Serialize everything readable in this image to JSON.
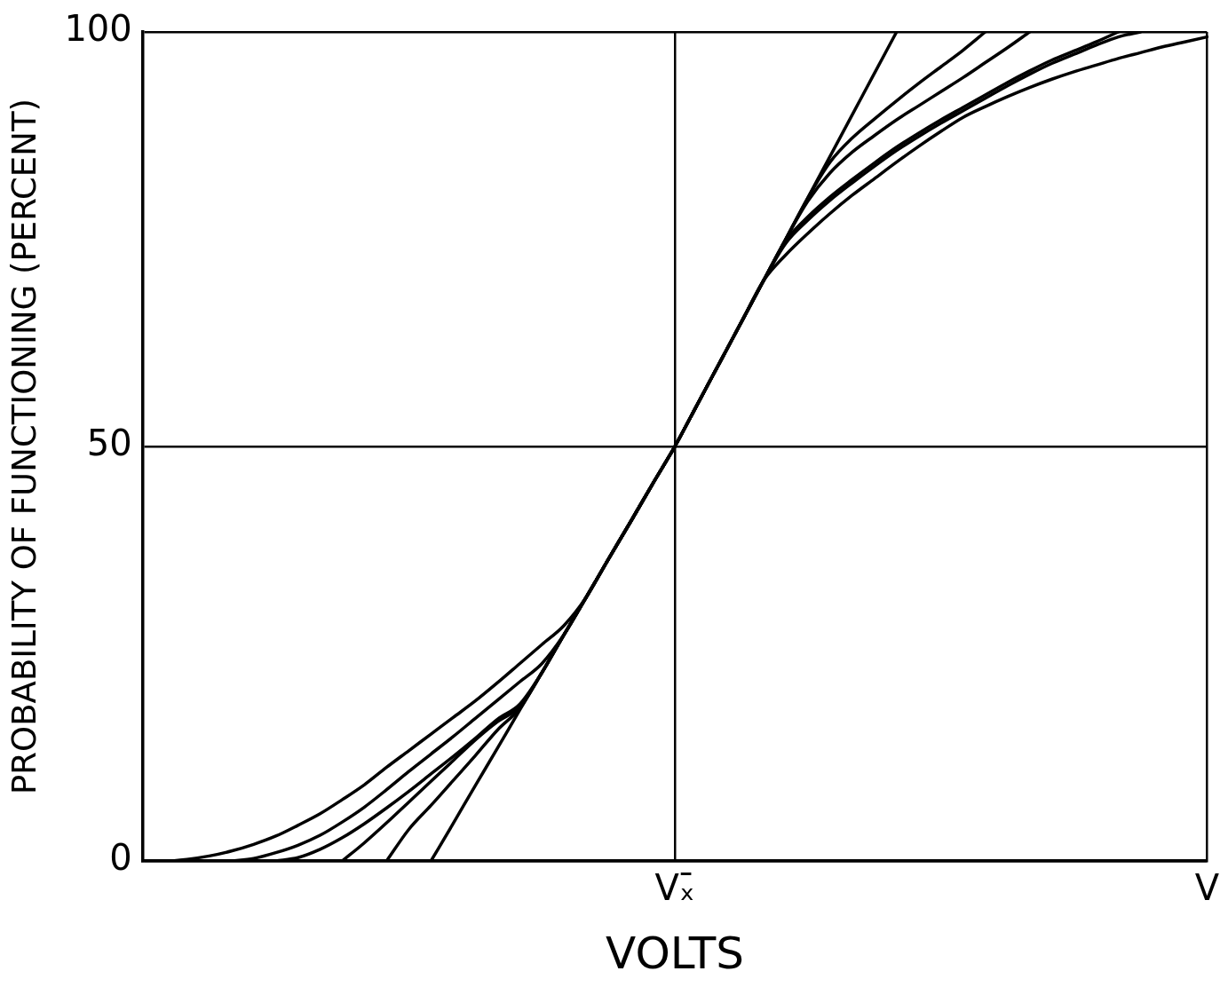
{
  "chart_data": {
    "type": "line",
    "xlabel": "VOLTS",
    "ylabel": "PROBABILITY OF FUNCTIONING (PERCENT)",
    "categories": [
      null,
      null,
      null,
      null,
      null,
      null,
      null,
      null,
      null,
      null,
      null,
      null,
      null,
      null,
      null,
      null,
      null,
      null,
      null,
      null,
      null,
      null,
      null,
      null,
      "Vₓ̄",
      null,
      null,
      null,
      null,
      null,
      null,
      null,
      null,
      null,
      null,
      null,
      null,
      null,
      null,
      null,
      null,
      null,
      null,
      null,
      null,
      null,
      null,
      null,
      "V"
    ],
    "ylim": [
      0,
      100
    ],
    "yticks": [
      0,
      50,
      100
    ],
    "grid": true,
    "legend": false,
    "marker": "none",
    "line_style": "solid",
    "series": [
      {
        "color": "#000000",
        "values": [
          0,
          0,
          0.2,
          0.6,
          1.2,
          2,
          3,
          4.3,
          5.7,
          7.4,
          9.2,
          11.3,
          13.3,
          15.3,
          17.3,
          19.3,
          21.5,
          23.8,
          26.1,
          28.4,
          31.8,
          36.4,
          40.9,
          45.5,
          50,
          55,
          60,
          65,
          70,
          73.1,
          75.7,
          78.1,
          80.3,
          82.3,
          84.3,
          86.2,
          88,
          89.7,
          91,
          92.2,
          93.3,
          94.3,
          95.2,
          96,
          96.8,
          97.5,
          98.2,
          98.8,
          99.4
        ]
      },
      {
        "color": "#000000",
        "values": [
          null,
          null,
          null,
          null,
          0,
          0.3,
          1,
          1.9,
          3.1,
          4.7,
          6.5,
          8.6,
          10.8,
          12.9,
          15,
          17.2,
          19.4,
          21.6,
          23.8,
          27.3,
          31.8,
          36.4,
          40.9,
          45.5,
          50,
          55,
          60,
          65,
          70,
          74.5,
          77.3,
          79.7,
          81.8,
          83.8,
          85.7,
          87.4,
          89,
          90.5,
          92,
          93.5,
          94.9,
          96.2,
          97.3,
          98.4,
          99.4,
          100,
          null,
          null,
          null
        ]
      },
      {
        "color": "#000000",
        "values": [
          null,
          null,
          null,
          null,
          null,
          null,
          0,
          0.4,
          1.4,
          2.8,
          4.5,
          6.4,
          8.4,
          10.5,
          12.6,
          14.8,
          17.1,
          18.9,
          22.7,
          27.3,
          31.8,
          36.4,
          40.9,
          45.5,
          50,
          55,
          60,
          65,
          70,
          74.8,
          77.7,
          80.1,
          82.2,
          84.2,
          86.1,
          87.8,
          89.4,
          90.9,
          92.4,
          93.9,
          95.3,
          96.6,
          97.7,
          98.8,
          100,
          null,
          null,
          null,
          null
        ]
      },
      {
        "color": "#000000",
        "values": [
          null,
          null,
          null,
          null,
          null,
          null,
          null,
          null,
          null,
          0,
          2.2,
          4.6,
          7.1,
          9.6,
          12.1,
          14.6,
          16.8,
          18.6,
          22.7,
          27.3,
          31.8,
          36.4,
          40.9,
          45.5,
          50,
          55,
          60,
          65,
          70,
          75,
          79.6,
          83,
          85.5,
          87.5,
          89.4,
          91.1,
          92.8,
          94.5,
          96.3,
          98.1,
          100,
          null,
          null,
          null,
          null,
          null,
          null,
          null,
          null
        ]
      },
      {
        "color": "#000000",
        "values": [
          null,
          null,
          null,
          null,
          null,
          null,
          null,
          null,
          null,
          null,
          null,
          0,
          3.8,
          6.7,
          9.7,
          12.7,
          15.8,
          18.4,
          22.7,
          27.3,
          31.8,
          36.4,
          40.9,
          45.5,
          50,
          55,
          60,
          65,
          70,
          75,
          80,
          84.3,
          87.2,
          89.5,
          91.7,
          93.8,
          95.8,
          97.8,
          100,
          null,
          null,
          null,
          null,
          null,
          null,
          null,
          null,
          null,
          null
        ]
      },
      {
        "color": "#000000",
        "values": [
          null,
          null,
          null,
          null,
          null,
          null,
          null,
          null,
          null,
          null,
          null,
          null,
          null,
          0,
          4.5,
          9.1,
          13.6,
          18.2,
          22.7,
          27.3,
          31.8,
          36.4,
          40.9,
          45.5,
          50,
          55,
          60,
          65,
          70,
          75,
          80,
          85,
          90,
          95,
          100,
          null,
          null,
          null,
          null,
          null,
          null,
          null,
          null,
          null,
          null,
          null,
          null,
          null,
          null
        ]
      }
    ]
  }
}
